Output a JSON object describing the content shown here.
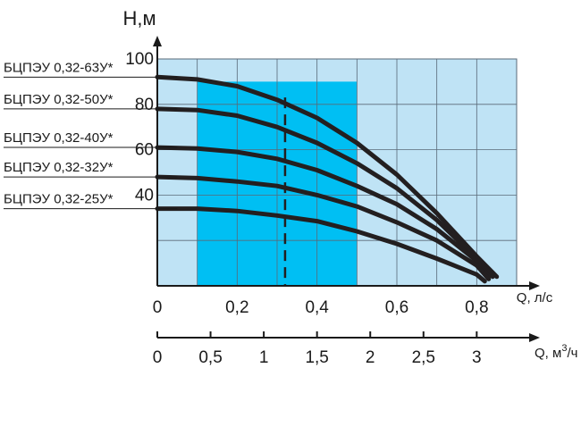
{
  "chart_data": {
    "type": "line",
    "ylabel": "Н,м",
    "xlabel": "Q, л/с",
    "x2label": "Q, м",
    "x2label_sup": "3",
    "x2label_tail": "/ч",
    "xlim": [
      0,
      0.9
    ],
    "ylim": [
      0,
      100
    ],
    "x_ticks": [
      "0",
      "0,2",
      "0,4",
      "0,6",
      "0,8"
    ],
    "x_tick_values": [
      0,
      0.2,
      0.4,
      0.6,
      0.8
    ],
    "y_ticks": [
      "40",
      "60",
      "80",
      "100"
    ],
    "y_tick_values": [
      40,
      60,
      80,
      100
    ],
    "x2_ticks": [
      "0",
      "0,5",
      "1",
      "1,5",
      "2",
      "2,5",
      "3"
    ],
    "x2_tick_values": [
      0,
      0.5,
      1,
      1.5,
      2,
      2.5,
      3
    ],
    "grid": true,
    "working_range": [
      0.1,
      0.5
    ],
    "nominal_flow": 0.32,
    "colors": {
      "background": "#bfe3f5",
      "working_range": "#00bff3",
      "grid": "#5a6a78",
      "curve": "#231f20"
    },
    "series": [
      {
        "name": "БЦПЭУ 0,32-63У*",
        "x": [
          0,
          0.1,
          0.2,
          0.3,
          0.4,
          0.5,
          0.6,
          0.7,
          0.8,
          0.85
        ],
        "y": [
          92,
          91,
          88,
          82,
          74,
          63,
          49,
          32,
          13,
          4
        ]
      },
      {
        "name": "БЦПЭУ 0,32-50У*",
        "x": [
          0,
          0.1,
          0.2,
          0.3,
          0.4,
          0.5,
          0.6,
          0.7,
          0.8,
          0.84
        ],
        "y": [
          78,
          77.5,
          75,
          70,
          63,
          54,
          43,
          29,
          12,
          4
        ]
      },
      {
        "name": "БЦПЭУ 0,32-40У*",
        "x": [
          0,
          0.1,
          0.2,
          0.3,
          0.4,
          0.5,
          0.6,
          0.7,
          0.8,
          0.83
        ],
        "y": [
          61,
          60.5,
          59,
          56,
          51,
          44,
          36,
          25,
          11,
          4
        ]
      },
      {
        "name": "БЦПЭУ 0,32-32У*",
        "x": [
          0,
          0.1,
          0.2,
          0.3,
          0.4,
          0.5,
          0.6,
          0.7,
          0.8,
          0.83
        ],
        "y": [
          48,
          47.5,
          46,
          44,
          40,
          35,
          28,
          20,
          9,
          3
        ]
      },
      {
        "name": "БЦПЭУ 0,32-25У*",
        "x": [
          0,
          0.1,
          0.2,
          0.3,
          0.4,
          0.5,
          0.6,
          0.7,
          0.8,
          0.82
        ],
        "y": [
          34,
          34,
          33,
          31,
          28.5,
          24,
          18.5,
          12,
          5,
          2
        ]
      }
    ]
  }
}
